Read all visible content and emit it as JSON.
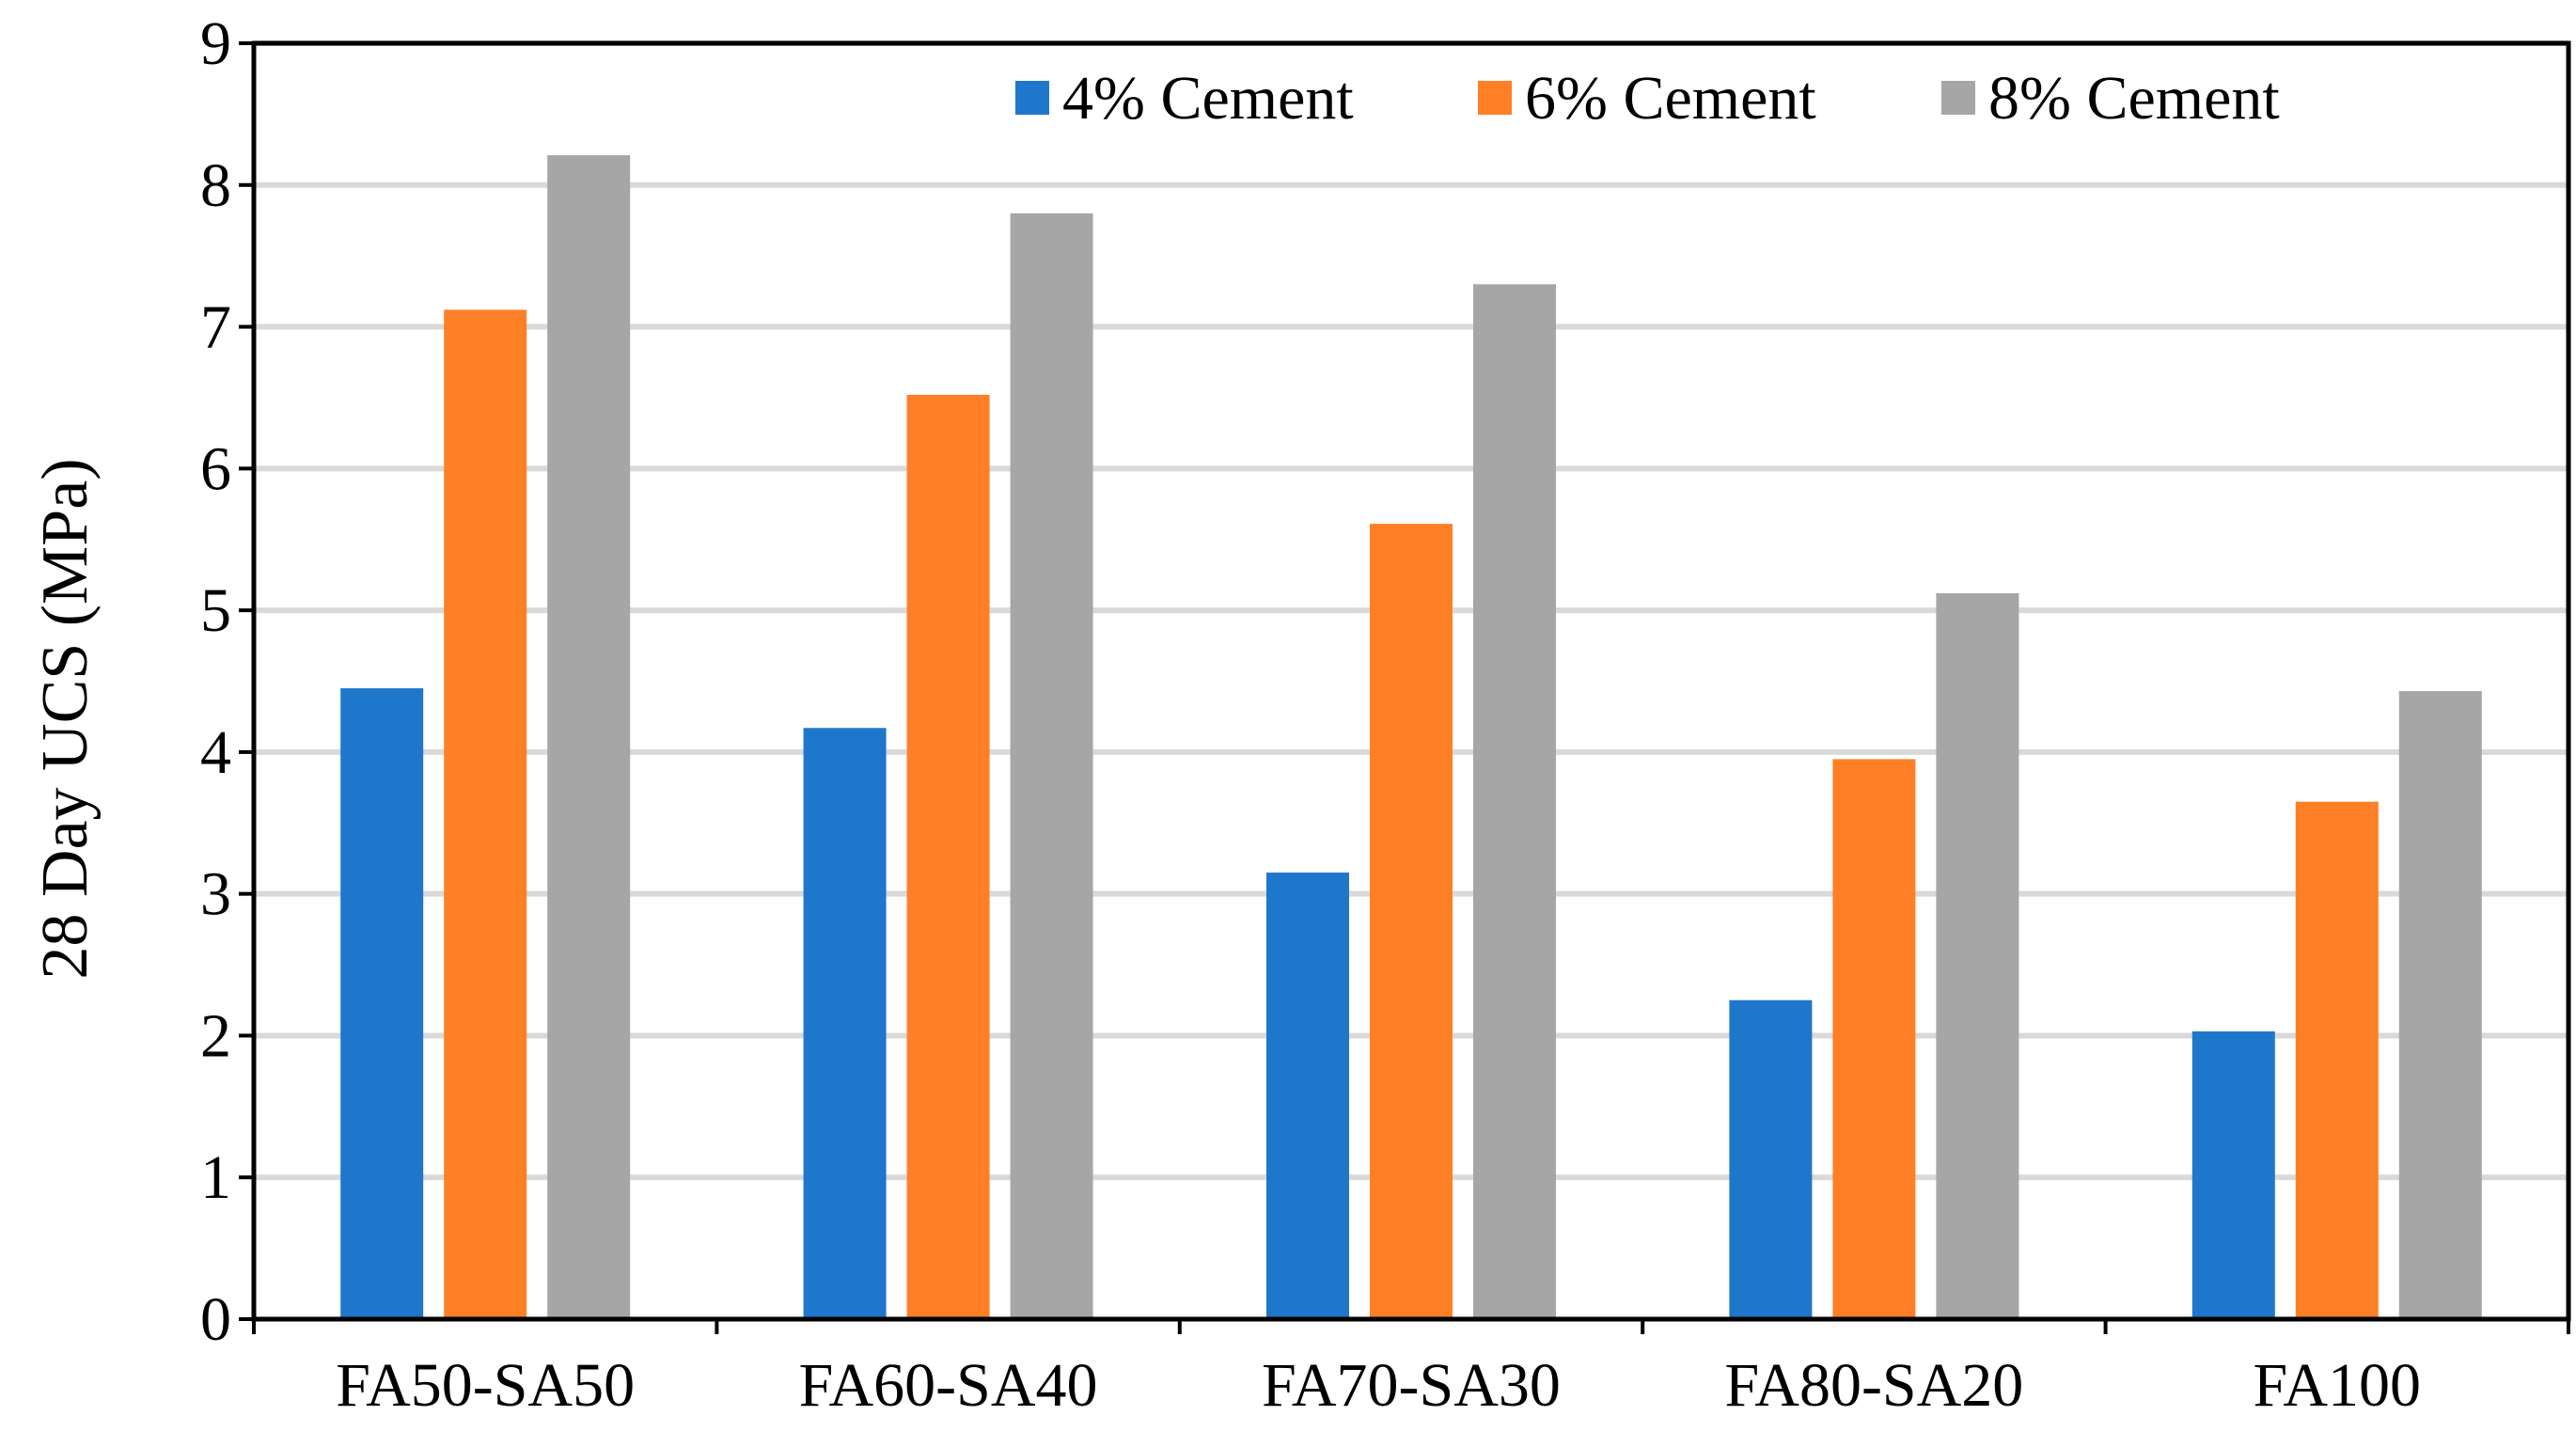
{
  "chart_data": {
    "type": "bar",
    "title": "",
    "xlabel": "",
    "ylabel": "28 Day UCS (MPa)",
    "ylim": [
      0,
      9
    ],
    "yticks": [
      0,
      1,
      2,
      3,
      4,
      5,
      6,
      7,
      8,
      9
    ],
    "grid": "horizontal",
    "legend_position": "top-right",
    "categories": [
      "FA50-SA50",
      "FA60-SA40",
      "FA70-SA30",
      "FA80-SA20",
      "FA100"
    ],
    "series": [
      {
        "name": "4% Cement",
        "color": "#1F77CC",
        "values": [
          4.45,
          4.17,
          3.15,
          2.25,
          2.03
        ]
      },
      {
        "name": "6% Cement",
        "color": "#FF7F27",
        "values": [
          7.12,
          6.52,
          5.61,
          3.95,
          3.65
        ]
      },
      {
        "name": "8% Cement",
        "color": "#A6A6A6",
        "values": [
          8.21,
          7.8,
          7.3,
          5.12,
          4.43
        ]
      }
    ]
  }
}
